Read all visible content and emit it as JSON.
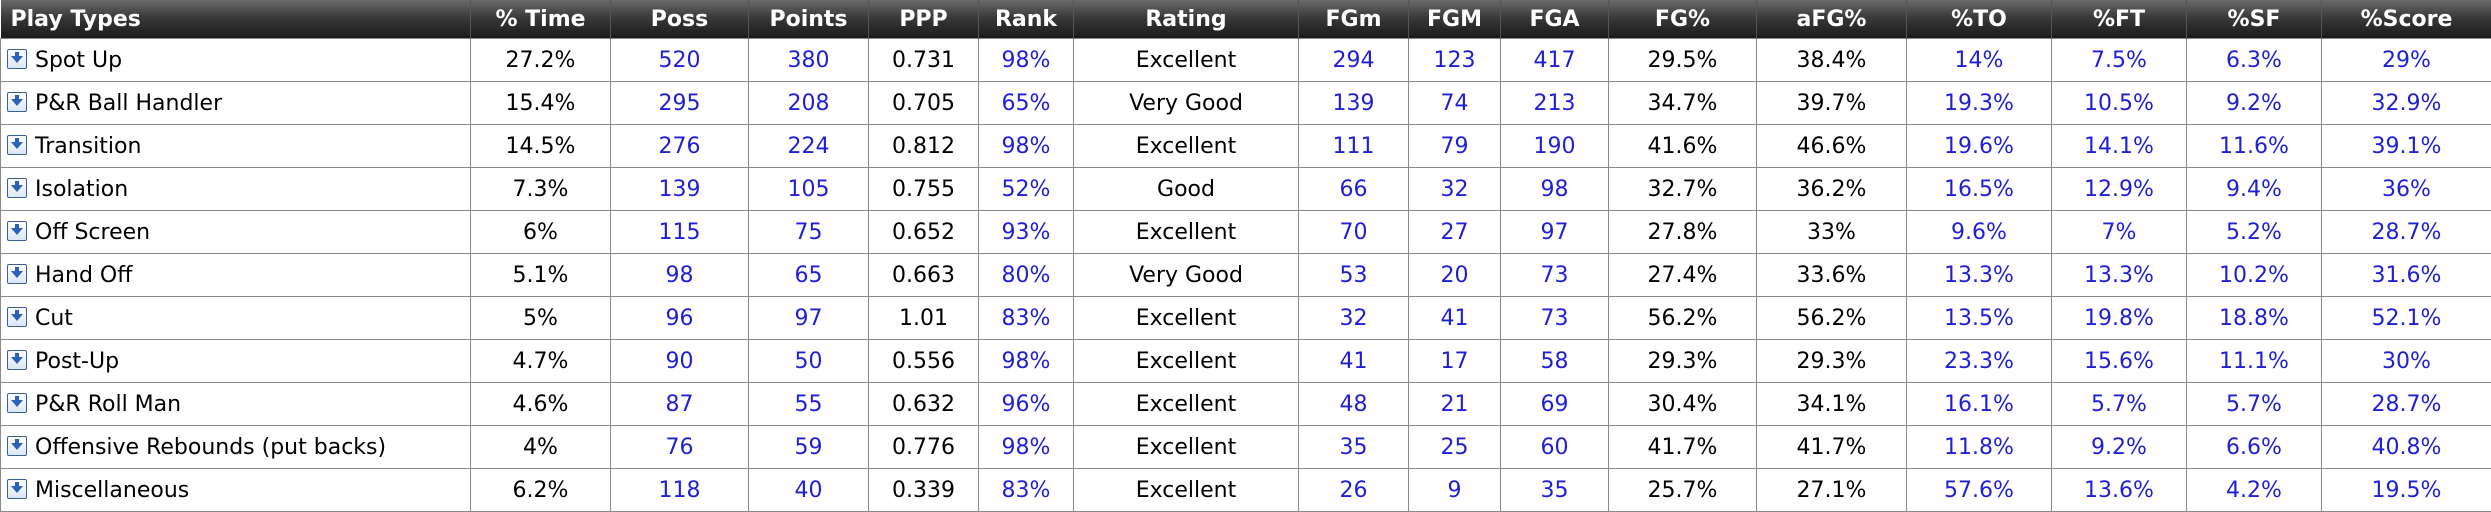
{
  "columns": [
    {
      "key": "play",
      "label": "Play Types",
      "blue": false
    },
    {
      "key": "time",
      "label": "% Time",
      "blue": false
    },
    {
      "key": "poss",
      "label": "Poss",
      "blue": true
    },
    {
      "key": "points",
      "label": "Points",
      "blue": true
    },
    {
      "key": "ppp",
      "label": "PPP",
      "blue": false
    },
    {
      "key": "rank",
      "label": "Rank",
      "blue": true
    },
    {
      "key": "rating",
      "label": "Rating",
      "blue": false
    },
    {
      "key": "fgm_miss",
      "label": "FGm",
      "blue": true
    },
    {
      "key": "fgm_made",
      "label": "FGM",
      "blue": true
    },
    {
      "key": "fga",
      "label": "FGA",
      "blue": true
    },
    {
      "key": "fg_pct",
      "label": "FG%",
      "blue": false
    },
    {
      "key": "afg_pct",
      "label": "aFG%",
      "blue": false
    },
    {
      "key": "to_pct",
      "label": "%TO",
      "blue": true
    },
    {
      "key": "ft_pct",
      "label": "%FT",
      "blue": true
    },
    {
      "key": "sf_pct",
      "label": "%SF",
      "blue": true
    },
    {
      "key": "score_pct",
      "label": "%Score",
      "blue": true
    }
  ],
  "rows": [
    [
      "Spot Up",
      "27.2%",
      "520",
      "380",
      "0.731",
      "98%",
      "Excellent",
      "294",
      "123",
      "417",
      "29.5%",
      "38.4%",
      "14%",
      "7.5%",
      "6.3%",
      "29%"
    ],
    [
      "P&R Ball Handler",
      "15.4%",
      "295",
      "208",
      "0.705",
      "65%",
      "Very Good",
      "139",
      "74",
      "213",
      "34.7%",
      "39.7%",
      "19.3%",
      "10.5%",
      "9.2%",
      "32.9%"
    ],
    [
      "Transition",
      "14.5%",
      "276",
      "224",
      "0.812",
      "98%",
      "Excellent",
      "111",
      "79",
      "190",
      "41.6%",
      "46.6%",
      "19.6%",
      "14.1%",
      "11.6%",
      "39.1%"
    ],
    [
      "Isolation",
      "7.3%",
      "139",
      "105",
      "0.755",
      "52%",
      "Good",
      "66",
      "32",
      "98",
      "32.7%",
      "36.2%",
      "16.5%",
      "12.9%",
      "9.4%",
      "36%"
    ],
    [
      "Off Screen",
      "6%",
      "115",
      "75",
      "0.652",
      "93%",
      "Excellent",
      "70",
      "27",
      "97",
      "27.8%",
      "33%",
      "9.6%",
      "7%",
      "5.2%",
      "28.7%"
    ],
    [
      "Hand Off",
      "5.1%",
      "98",
      "65",
      "0.663",
      "80%",
      "Very Good",
      "53",
      "20",
      "73",
      "27.4%",
      "33.6%",
      "13.3%",
      "13.3%",
      "10.2%",
      "31.6%"
    ],
    [
      "Cut",
      "5%",
      "96",
      "97",
      "1.01",
      "83%",
      "Excellent",
      "32",
      "41",
      "73",
      "56.2%",
      "56.2%",
      "13.5%",
      "19.8%",
      "18.8%",
      "52.1%"
    ],
    [
      "Post-Up",
      "4.7%",
      "90",
      "50",
      "0.556",
      "98%",
      "Excellent",
      "41",
      "17",
      "58",
      "29.3%",
      "29.3%",
      "23.3%",
      "15.6%",
      "11.1%",
      "30%"
    ],
    [
      "P&R Roll Man",
      "4.6%",
      "87",
      "55",
      "0.632",
      "96%",
      "Excellent",
      "48",
      "21",
      "69",
      "30.4%",
      "34.1%",
      "16.1%",
      "5.7%",
      "5.7%",
      "28.7%"
    ],
    [
      "Offensive Rebounds (put backs)",
      "4%",
      "76",
      "59",
      "0.776",
      "98%",
      "Excellent",
      "35",
      "25",
      "60",
      "41.7%",
      "41.7%",
      "11.8%",
      "9.2%",
      "6.6%",
      "40.8%"
    ],
    [
      "Miscellaneous",
      "6.2%",
      "118",
      "40",
      "0.339",
      "83%",
      "Excellent",
      "26",
      "9",
      "35",
      "25.7%",
      "27.1%",
      "57.6%",
      "13.6%",
      "4.2%",
      "19.5%"
    ]
  ],
  "colors": {
    "link": "#1f1fd6",
    "header_bg": "#2a2a2a",
    "header_text": "#ffffff",
    "border": "#8a8a8a"
  },
  "icons": {
    "row_expand": "expand-arrow-icon"
  }
}
